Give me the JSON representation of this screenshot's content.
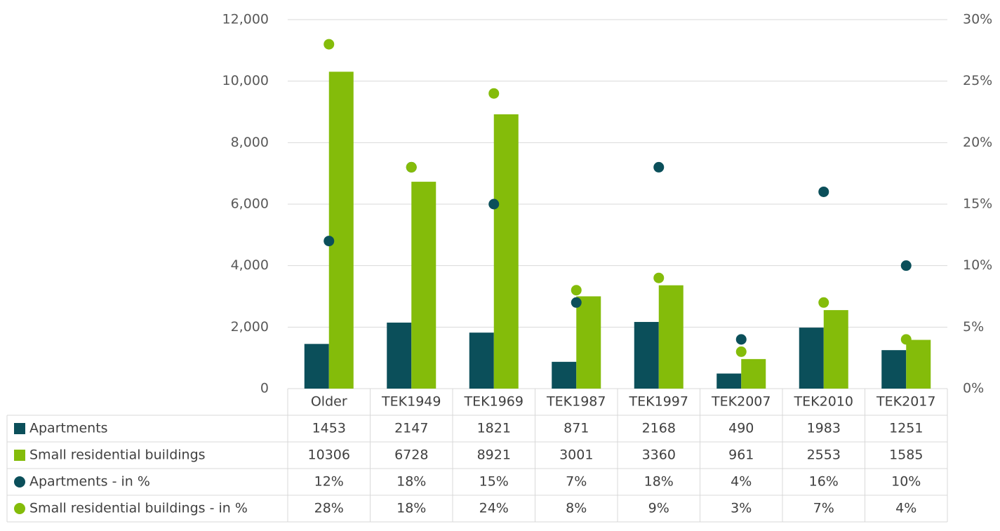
{
  "chart_data": {
    "type": "bar",
    "categories": [
      "Older",
      "TEK1949",
      "TEK1969",
      "TEK1987",
      "TEK1997",
      "TEK2007",
      "TEK2010",
      "TEK2017"
    ],
    "ylim": [
      0,
      12000
    ],
    "yticks": [
      0,
      {
        "value": 2000,
        "label": "2,000"
      },
      {
        "value": 4000,
        "label": "4,000"
      },
      {
        "value": 6000,
        "label": "6,000"
      },
      {
        "value": 8000,
        "label": "8,000"
      },
      {
        "value": 10000,
        "label": "10,000"
      },
      {
        "value": 12000,
        "label": "12,000"
      }
    ],
    "y2lim": [
      0,
      30
    ],
    "y2ticks": [
      {
        "value": 0,
        "label": "0%"
      },
      {
        "value": 5,
        "label": "5%"
      },
      {
        "value": 10,
        "label": "10%"
      },
      {
        "value": 15,
        "label": "15%"
      },
      {
        "value": 20,
        "label": "20%"
      },
      {
        "value": 25,
        "label": "25%"
      },
      {
        "value": 30,
        "label": "30%"
      }
    ],
    "grid": true,
    "series": [
      {
        "name": "Apartments",
        "type": "bar",
        "color": "#0b4f5a",
        "values": [
          1453,
          2147,
          1821,
          871,
          2168,
          490,
          1983,
          1251
        ]
      },
      {
        "name": "Small residential buildings",
        "type": "bar",
        "color": "#84bc0a",
        "values": [
          10306,
          6728,
          8921,
          3001,
          3360,
          961,
          2553,
          1585
        ]
      },
      {
        "name": "Apartments - in %",
        "type": "scatter",
        "axis": "y2",
        "color": "#0b4f5a",
        "values": [
          12,
          18,
          15,
          7,
          18,
          4,
          16,
          10
        ],
        "value_labels": [
          "12%",
          "18%",
          "15%",
          "7%",
          "18%",
          "4%",
          "16%",
          "10%"
        ]
      },
      {
        "name": "Small residential buildings - in %",
        "type": "scatter",
        "axis": "y2",
        "color": "#84bc0a",
        "values": [
          28,
          18,
          24,
          8,
          9,
          3,
          7,
          4
        ],
        "value_labels": [
          "28%",
          "18%",
          "24%",
          "8%",
          "9%",
          "3%",
          "7%",
          "4%"
        ]
      }
    ]
  }
}
